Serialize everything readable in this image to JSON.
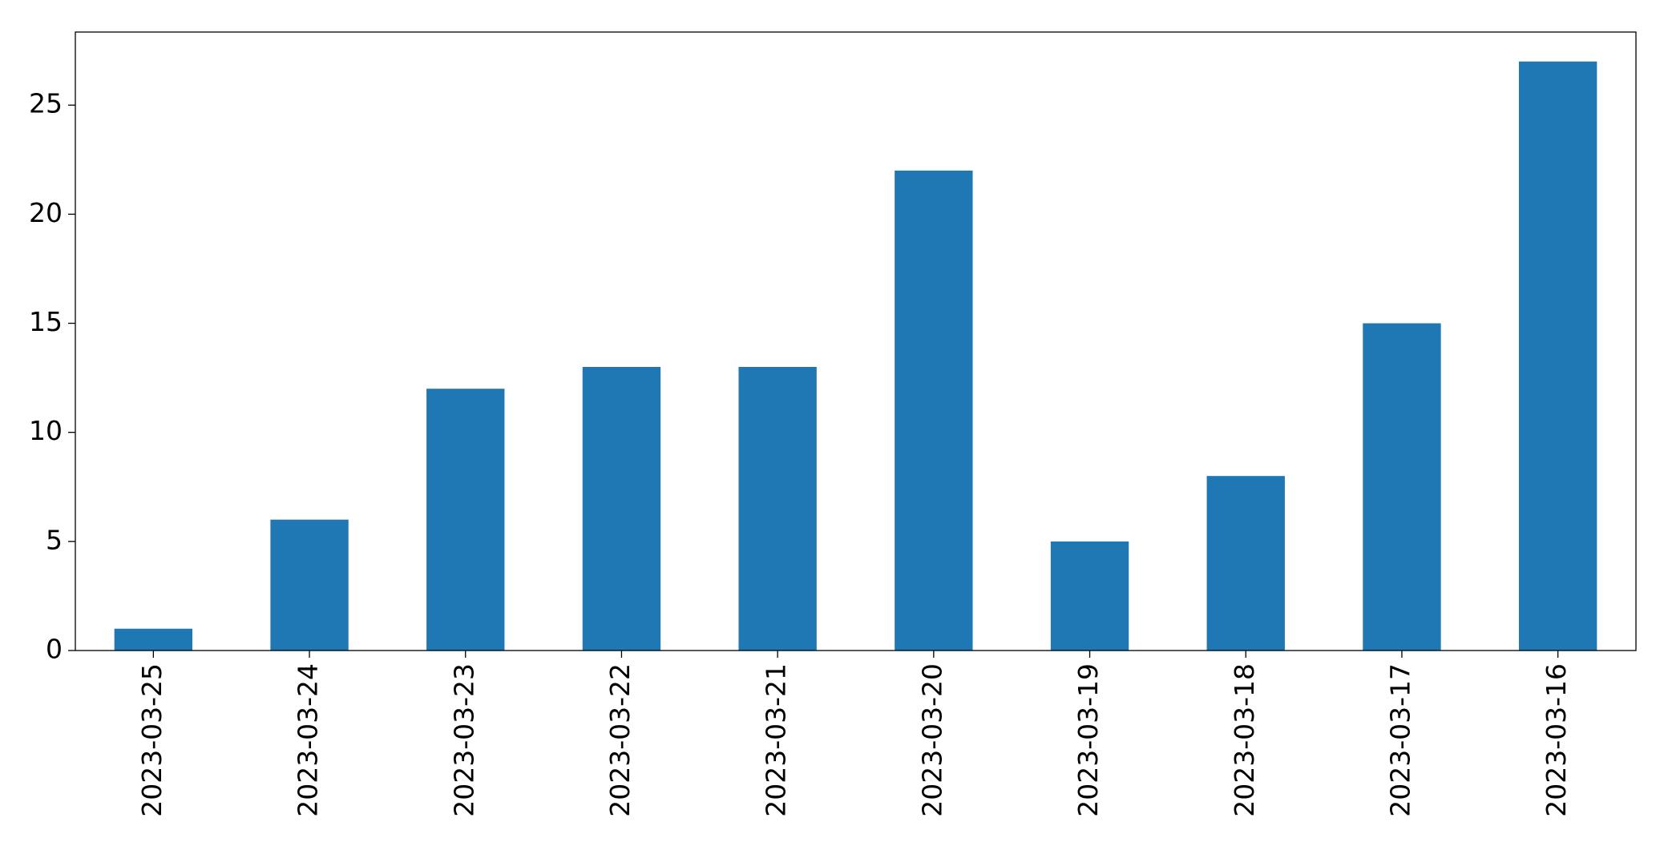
{
  "chart_data": {
    "type": "bar",
    "categories": [
      "2023-03-25",
      "2023-03-24",
      "2023-03-23",
      "2023-03-22",
      "2023-03-21",
      "2023-03-20",
      "2023-03-19",
      "2023-03-18",
      "2023-03-17",
      "2023-03-16"
    ],
    "values": [
      1,
      6,
      12,
      13,
      13,
      22,
      5,
      8,
      15,
      27
    ],
    "color": "#1f77b4",
    "ylim": [
      0,
      28.35
    ],
    "yticks": [
      0,
      5,
      10,
      15,
      20,
      25
    ],
    "grid": false
  }
}
